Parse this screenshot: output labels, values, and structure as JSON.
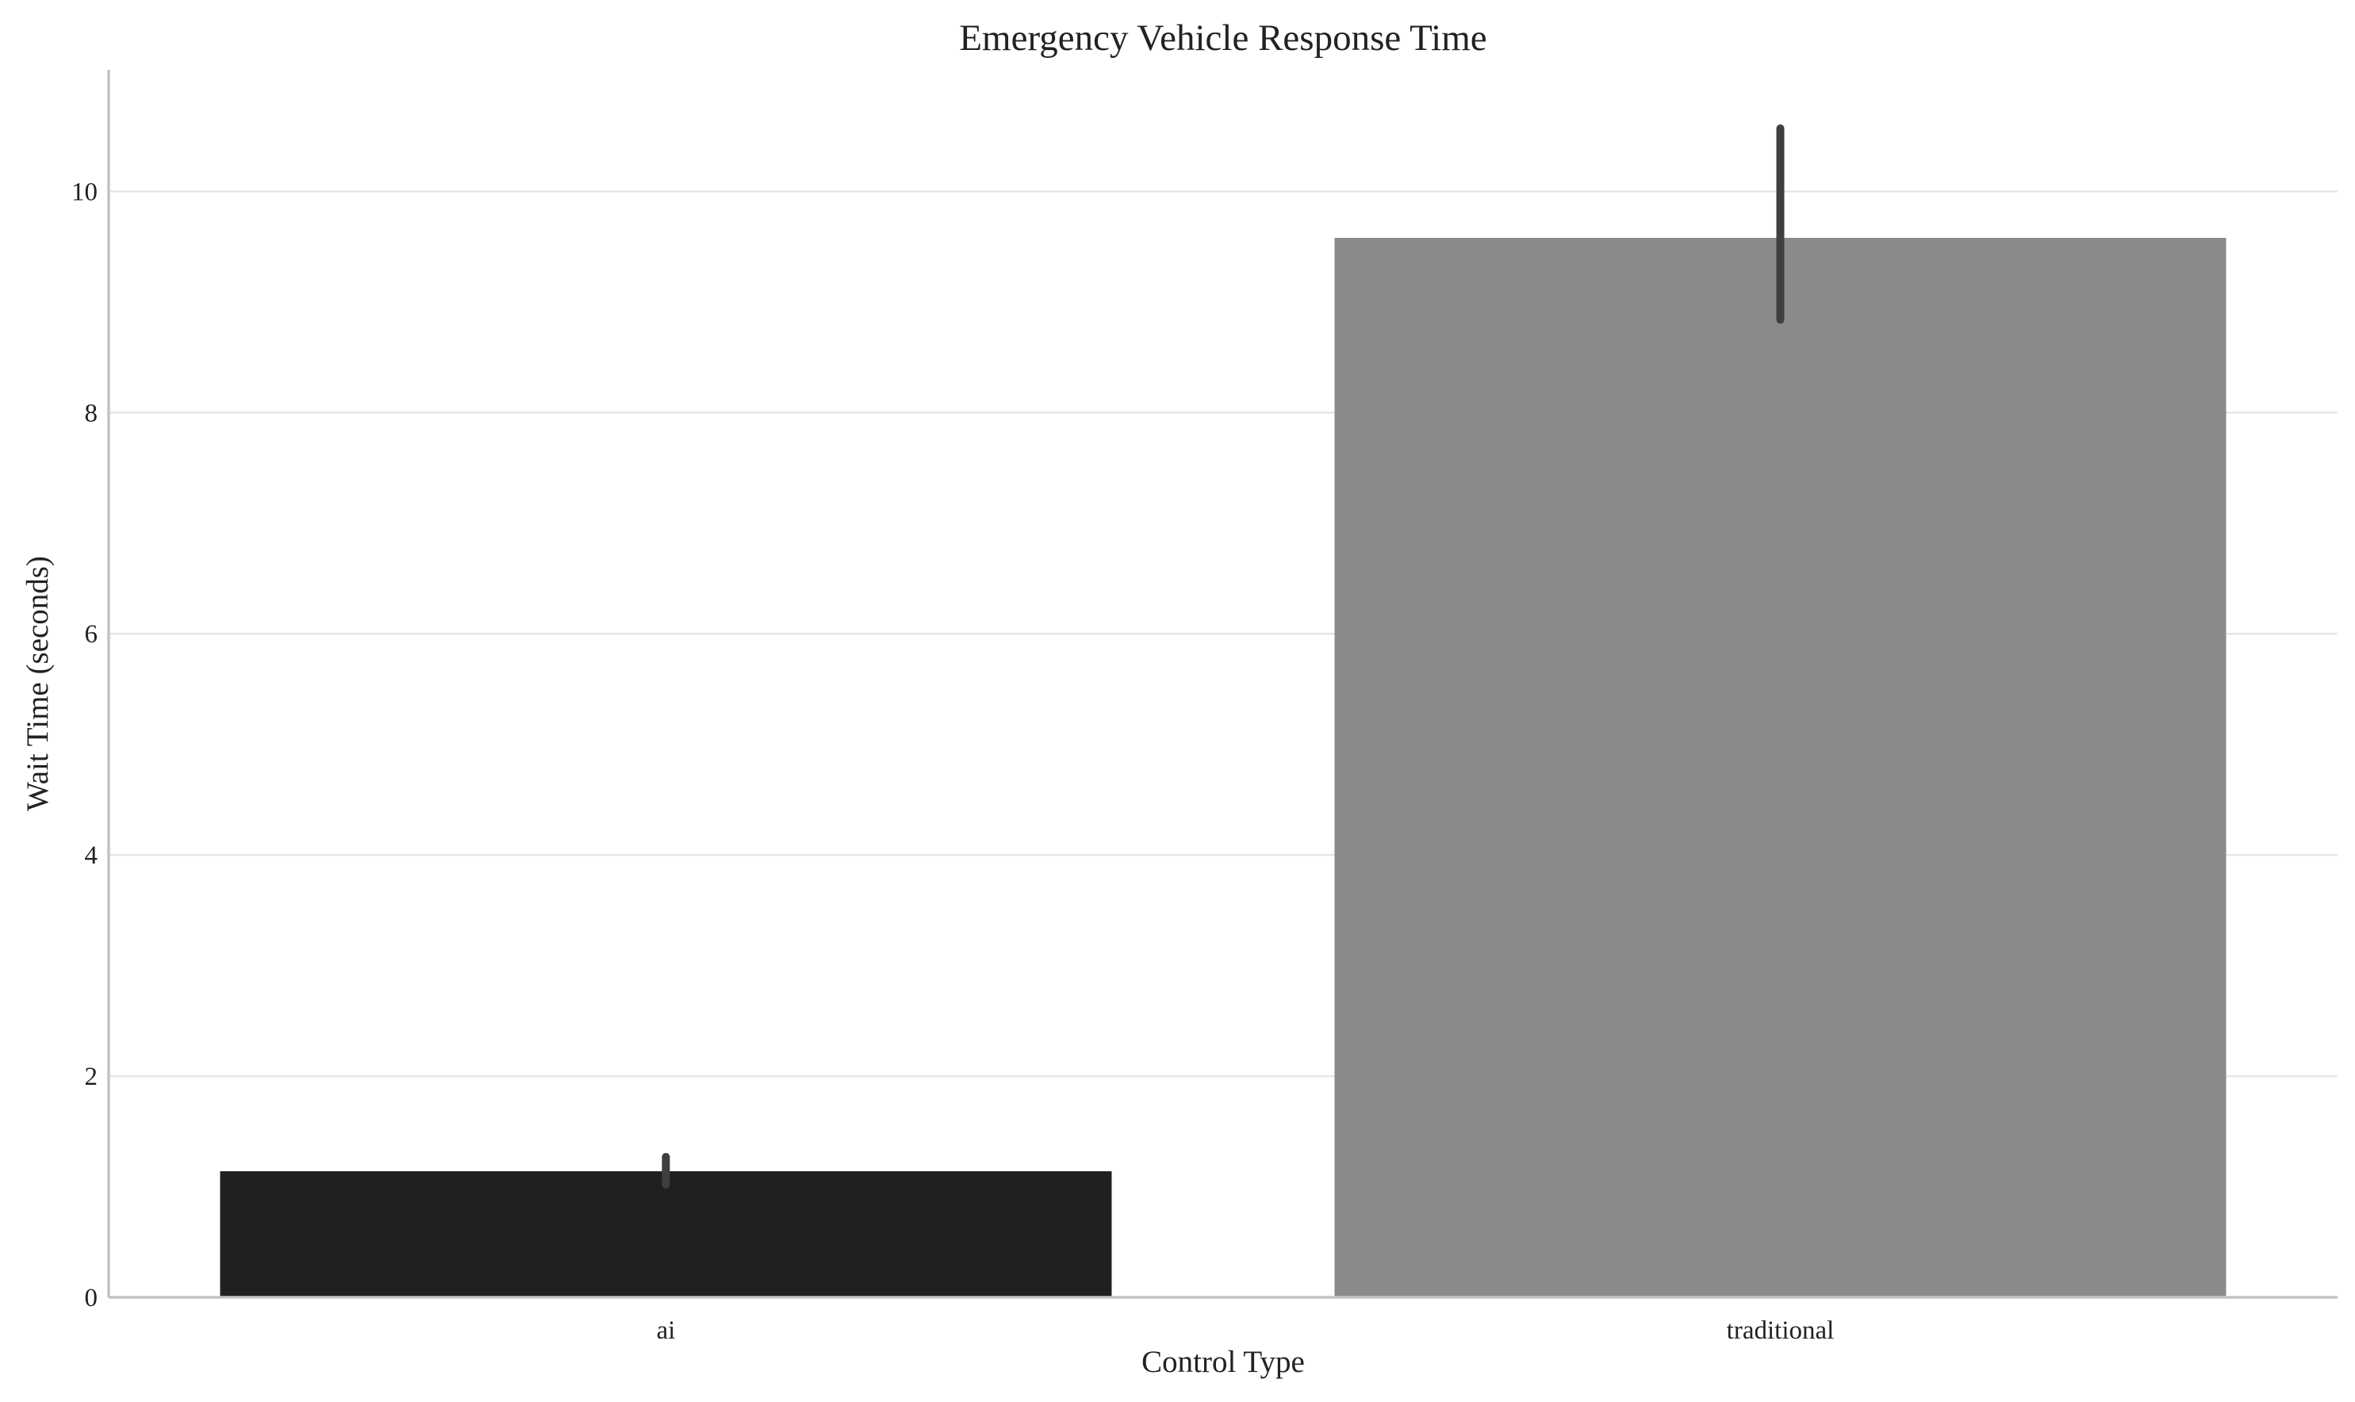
{
  "chart_data": {
    "type": "bar",
    "title": "Emergency Vehicle Response Time",
    "xlabel": "Control Type",
    "ylabel": "Wait Time (seconds)",
    "categories": [
      "ai",
      "traditional"
    ],
    "values": [
      1.14,
      9.58
    ],
    "error_bars": [
      {
        "low": 1.02,
        "high": 1.27
      },
      {
        "low": 8.84,
        "high": 10.57
      }
    ],
    "colors": [
      "#202020",
      "#8a8a8a"
    ],
    "ylim": [
      0,
      11.1
    ],
    "yticks": [
      0,
      2,
      4,
      6,
      8,
      10
    ],
    "grid": "horizontal",
    "legend": "none"
  }
}
